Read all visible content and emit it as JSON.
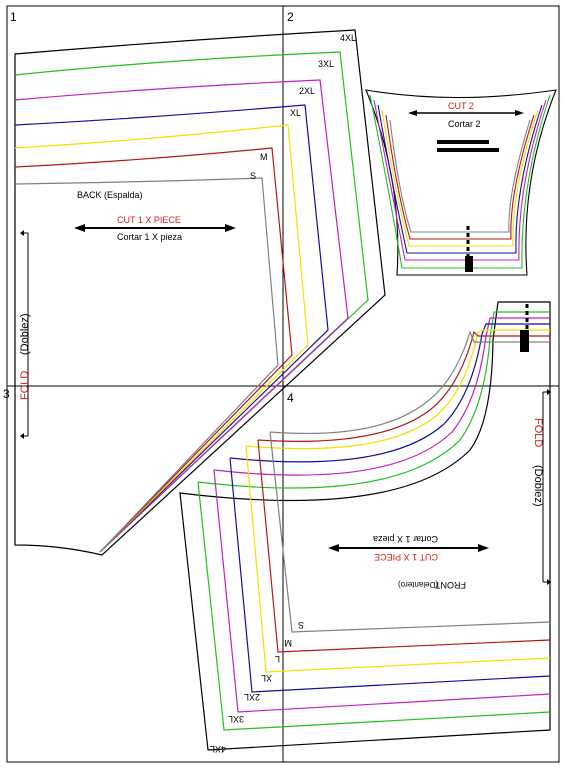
{
  "page_numbers": [
    "1",
    "2",
    "3",
    "4"
  ],
  "size_colors": {
    "S": "#808080",
    "M": "#b01818",
    "L": "#f0e000",
    "XL": "#1010a0",
    "2XL": "#c020c0",
    "3XL": "#20c020",
    "4XL": "#000000"
  },
  "back_piece": {
    "name": "BACK  (Espalda)",
    "cut_en": "CUT 1 X PIECE",
    "cut_es": "Cortar 1 X pieza",
    "fold_en": "FOLD",
    "fold_es": "(Doblez)",
    "size_labels": [
      "4XL",
      "3XL",
      "2XL",
      "XL",
      "M",
      "S"
    ]
  },
  "sleeve_piece": {
    "cut_en": "CUT 2",
    "cut_es": "Cortar 2"
  },
  "front_piece": {
    "name": "FRONT",
    "name_es": "(Delantero)",
    "cut_en": "CUT 1 X PIECE",
    "cut_es": "Cortar 1 X pieza",
    "fold_en": "FOLD",
    "fold_es": "(Doblez)",
    "size_labels": [
      "S",
      "M",
      "L",
      "XL",
      "2XL",
      "3XL",
      "4XL"
    ]
  },
  "accent_red": "#d02020"
}
